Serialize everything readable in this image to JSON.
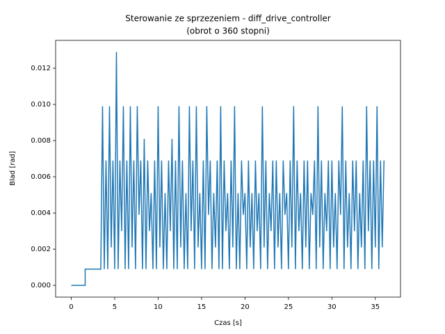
{
  "chart_data": {
    "type": "line",
    "title": [
      "Sterowanie ze sprzezeniem - diff_drive_controller",
      "(obrot o 360 stopni)"
    ],
    "x_label": "Czas [s]",
    "y_label": "Blad [rad]",
    "xlim": [
      -1.8,
      37.9
    ],
    "ylim": [
      -0.00065,
      0.01354
    ],
    "xticks": [
      0,
      5,
      10,
      15,
      20,
      25,
      30,
      35
    ],
    "yticks": [
      {
        "value": 0,
        "label": "0.000"
      },
      {
        "value": 0.002,
        "label": "0.002"
      },
      {
        "value": 0.004,
        "label": "0.004"
      },
      {
        "value": 0.006,
        "label": "0.006"
      },
      {
        "value": 0.008,
        "label": "0.008"
      },
      {
        "value": 0.01,
        "label": "0.010"
      },
      {
        "value": 0.012,
        "label": "0.012"
      }
    ],
    "series": [
      {
        "color": "#1f77b4",
        "x": [
          0,
          1.6,
          1.6,
          3.4,
          3.6,
          3.8,
          4.0,
          4.2,
          4.4,
          4.6,
          4.8,
          5.0,
          5.2,
          5.4,
          5.6,
          5.8,
          6.0,
          6.2,
          6.4,
          6.6,
          6.8,
          7.0,
          7.2,
          7.4,
          7.6,
          7.8,
          8.0,
          8.2,
          8.4,
          8.6,
          8.8,
          9.0,
          9.2,
          9.4,
          9.6,
          9.8,
          10.0,
          10.2,
          10.4,
          10.6,
          10.8,
          11.0,
          11.2,
          11.4,
          11.6,
          11.8,
          12.0,
          12.2,
          12.4,
          12.6,
          12.8,
          13.0,
          13.2,
          13.4,
          13.6,
          13.8,
          14.0,
          14.2,
          14.4,
          14.6,
          14.8,
          15.0,
          15.2,
          15.4,
          15.6,
          15.8,
          16.0,
          16.2,
          16.4,
          16.6,
          16.8,
          17.0,
          17.2,
          17.4,
          17.6,
          17.8,
          18.0,
          18.2,
          18.4,
          18.6,
          18.8,
          19.0,
          19.2,
          19.4,
          19.6,
          19.8,
          20.0,
          20.2,
          20.4,
          20.6,
          20.8,
          21.0,
          21.2,
          21.4,
          21.6,
          21.8,
          22.0,
          22.2,
          22.4,
          22.6,
          22.8,
          23.0,
          23.2,
          23.4,
          23.6,
          23.8,
          24.0,
          24.2,
          24.4,
          24.6,
          24.8,
          25.0,
          25.2,
          25.4,
          25.6,
          25.8,
          26.0,
          26.2,
          26.4,
          26.6,
          26.8,
          27.0,
          27.2,
          27.4,
          27.6,
          27.8,
          28.0,
          28.2,
          28.4,
          28.6,
          28.8,
          29.0,
          29.2,
          29.4,
          29.6,
          29.8,
          30.0,
          30.2,
          30.4,
          30.6,
          30.8,
          31.0,
          31.2,
          31.4,
          31.6,
          31.8,
          32.0,
          32.2,
          32.4,
          32.6,
          32.8,
          33.0,
          33.2,
          33.4,
          33.6,
          33.8,
          34.0,
          34.2,
          34.4,
          34.6,
          34.8,
          35.0,
          35.2,
          35.4,
          35.6,
          35.8,
          36.0
        ],
        "values": [
          0,
          0,
          0.0009,
          0.0009,
          0.0099,
          0.0009,
          0.0069,
          0.0009,
          0.0099,
          0.0021,
          0.0069,
          0.0009,
          0.0129,
          0.0009,
          0.0069,
          0.003,
          0.0099,
          0.0009,
          0.0069,
          0.0009,
          0.0099,
          0.0021,
          0.0069,
          0.0009,
          0.0099,
          0.0039,
          0.0069,
          0.0009,
          0.0081,
          0.0009,
          0.0069,
          0.003,
          0.0051,
          0.0009,
          0.0069,
          0.0009,
          0.0099,
          0.0021,
          0.0069,
          0.0009,
          0.0051,
          0.0009,
          0.0069,
          0.003,
          0.0081,
          0.0009,
          0.0069,
          0.0009,
          0.0099,
          0.0021,
          0.0069,
          0.0009,
          0.0051,
          0.0009,
          0.0099,
          0.003,
          0.0069,
          0.0009,
          0.0099,
          0.0021,
          0.0051,
          0.0009,
          0.0069,
          0.0009,
          0.0099,
          0.0039,
          0.0069,
          0.0009,
          0.0051,
          0.0021,
          0.0069,
          0.0009,
          0.0099,
          0.0009,
          0.0069,
          0.003,
          0.0051,
          0.0009,
          0.0069,
          0.0021,
          0.0099,
          0.0009,
          0.0051,
          0.0009,
          0.0069,
          0.0039,
          0.0051,
          0.0009,
          0.0069,
          0.0021,
          0.0051,
          0.0009,
          0.0069,
          0.003,
          0.0051,
          0.0009,
          0.0099,
          0.0021,
          0.0069,
          0.0009,
          0.0051,
          0.003,
          0.0069,
          0.0009,
          0.0069,
          0.0021,
          0.0051,
          0.0009,
          0.0069,
          0.0039,
          0.0051,
          0.0009,
          0.0069,
          0.0021,
          0.0099,
          0.0009,
          0.0069,
          0.003,
          0.0051,
          0.0009,
          0.0069,
          0.0021,
          0.0069,
          0.0009,
          0.0051,
          0.0039,
          0.0069,
          0.0009,
          0.0099,
          0.0021,
          0.0069,
          0.0009,
          0.0051,
          0.003,
          0.0069,
          0.0009,
          0.0069,
          0.0021,
          0.0051,
          0.0009,
          0.0069,
          0.0039,
          0.0099,
          0.0009,
          0.0069,
          0.0021,
          0.0051,
          0.0009,
          0.0069,
          0.003,
          0.0069,
          0.0009,
          0.0051,
          0.0021,
          0.0069,
          0.0009,
          0.0099,
          0.003,
          0.0069,
          0.0009,
          0.0069,
          0.0021,
          0.0099,
          0.0009,
          0.0069,
          0.0021,
          0.0069
        ]
      }
    ]
  }
}
